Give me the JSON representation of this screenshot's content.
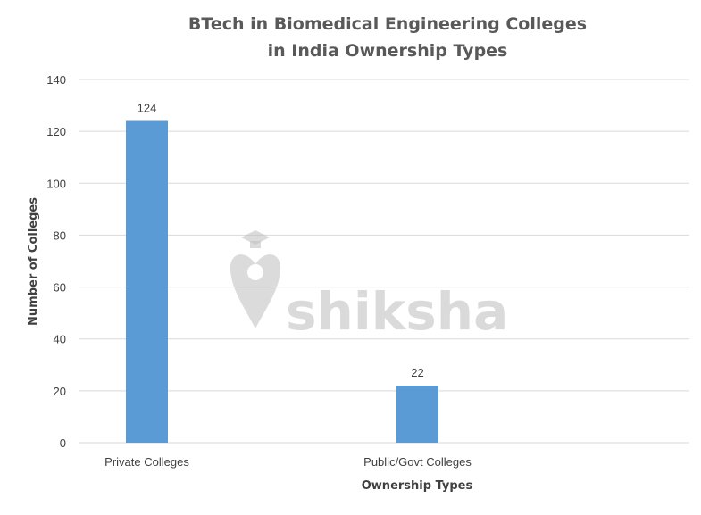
{
  "chart_data": {
    "type": "bar",
    "title_lines": [
      "BTech in Biomedical Engineering Colleges",
      "in India Ownership Types"
    ],
    "categories": [
      "Private Colleges",
      "Public/Govt Colleges"
    ],
    "values": [
      124,
      22
    ],
    "data_labels": [
      "124",
      "22"
    ],
    "xlabel": "Ownership Types",
    "ylabel": "Number of Colleges",
    "ylim": [
      0,
      140
    ],
    "yticks": [
      0,
      20,
      40,
      60,
      80,
      100,
      120,
      140
    ],
    "grid": true,
    "bar_color": "#5b9bd5"
  },
  "watermark": {
    "text": "shiksha"
  }
}
